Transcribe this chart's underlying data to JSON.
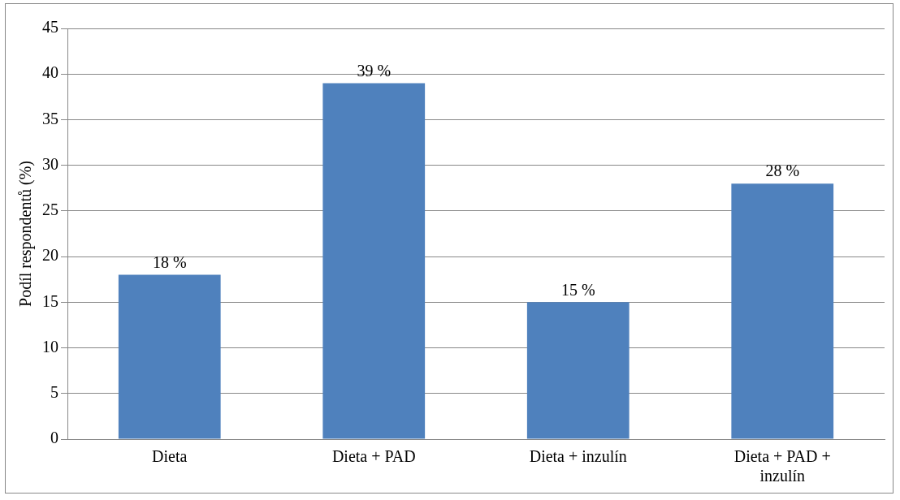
{
  "chart_data": {
    "type": "bar",
    "ylabel": "Podíl respondentů (%)",
    "categories": [
      "Dieta",
      "Dieta + PAD",
      "Dieta + inzulín",
      "Dieta + PAD + inzulín"
    ],
    "series": [
      {
        "color": "#4f81bd",
        "values": [
          18,
          39,
          15,
          28
        ],
        "value_labels": [
          "18 %",
          "39 %",
          "15 %",
          "28 %"
        ]
      }
    ],
    "ylim": [
      0,
      45
    ],
    "yticks": [
      0,
      5,
      10,
      15,
      20,
      25,
      30,
      35,
      40,
      45
    ],
    "grid": "y",
    "legend": false
  }
}
